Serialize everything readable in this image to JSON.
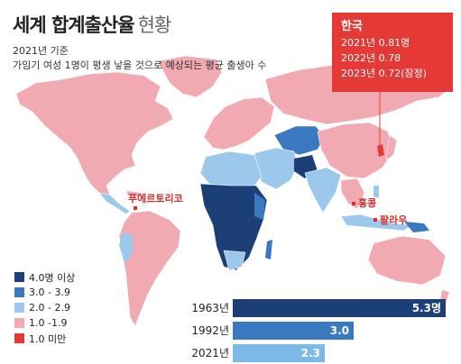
{
  "title": {
    "bold": "세계 합계출산율",
    "light": "현황"
  },
  "subtitle": {
    "line1": "2021년 기준",
    "line2": "가임기 여성 1명이 평생 낳을 것으로 예상되는 평균 출생아 수"
  },
  "callout": {
    "country": "한국",
    "rows": [
      "2021년 0.81명",
      "2022년 0.78",
      "2023년 0.72(잠정)"
    ]
  },
  "map_labels": {
    "puerto_rico": "푸에르토리코",
    "hong_kong": "홍콩",
    "palau": "팔라우"
  },
  "legend": [
    {
      "label": "4.0명 이상",
      "color": "#1c3f78"
    },
    {
      "label": "3.0 - 3.9",
      "color": "#3a78c0"
    },
    {
      "label": "2.0 - 2.9",
      "color": "#9cc8ec"
    },
    {
      "label": "1.0 -1.9",
      "color": "#f2aab2"
    },
    {
      "label": "1.0 미만",
      "color": "#e53935"
    }
  ],
  "world_trend": [
    {
      "year": "1963년",
      "value": 5.3,
      "label": "5.3명",
      "color": "#1c3f78"
    },
    {
      "year": "1992년",
      "value": 3.0,
      "label": "3.0",
      "color": "#3a78c0"
    },
    {
      "year": "2021년",
      "value": 2.3,
      "label": "2.3",
      "color": "#7db8e6"
    }
  ]
}
